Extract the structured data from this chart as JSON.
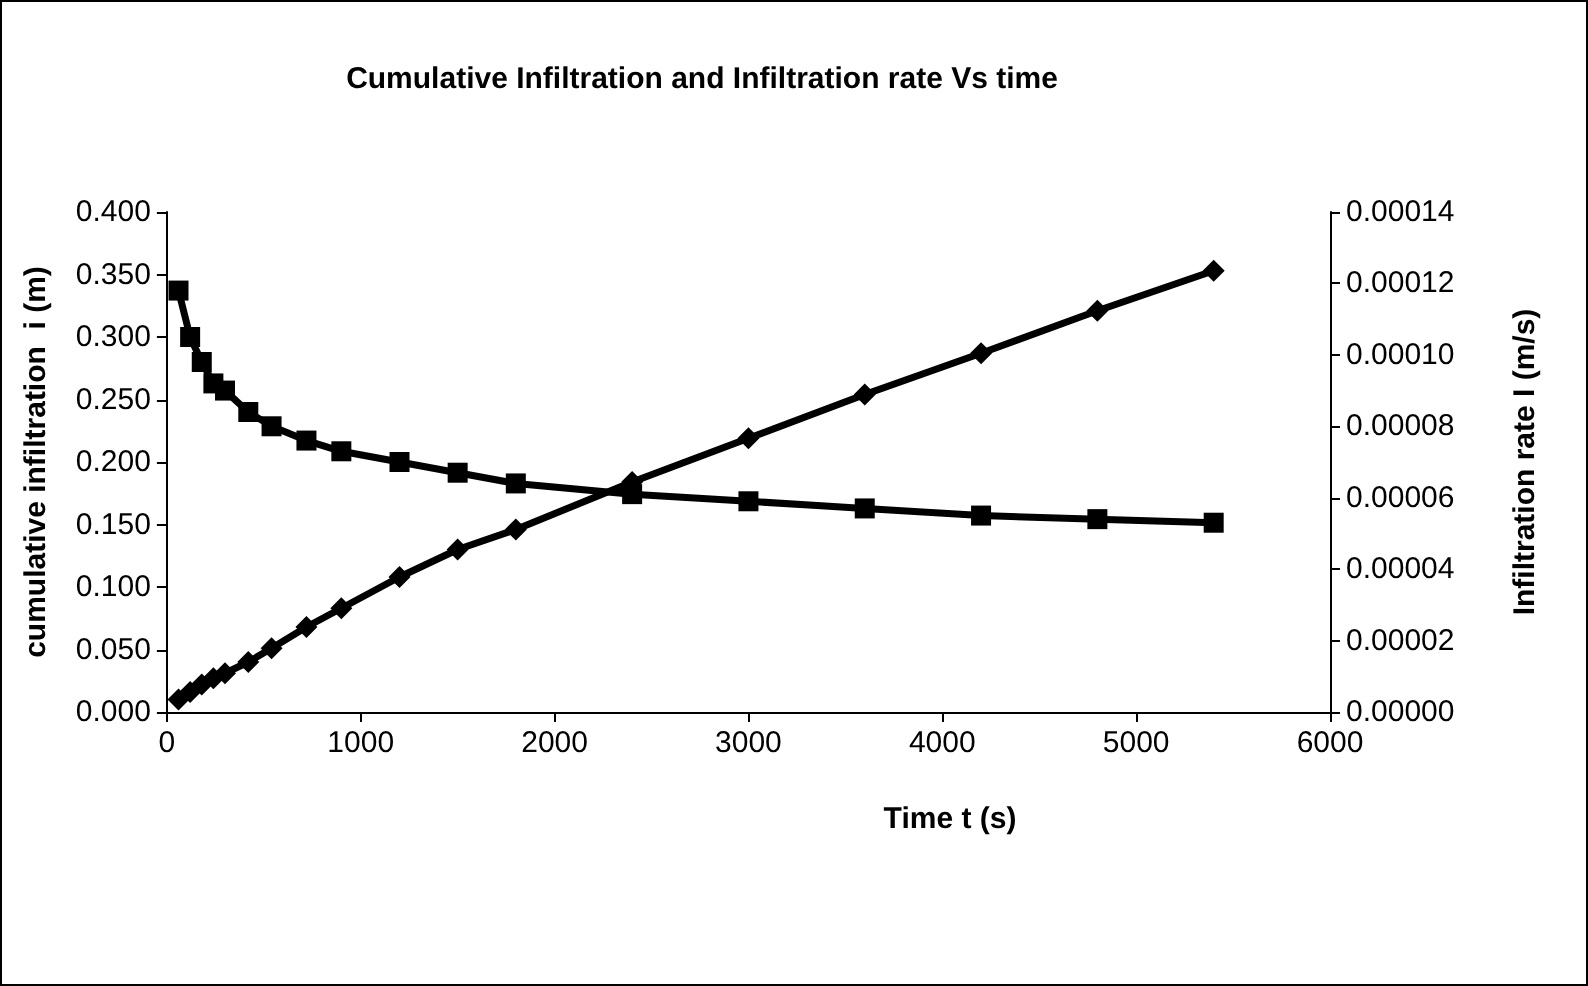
{
  "chart_data": {
    "type": "line",
    "title": "Cumulative Infiltration and Infiltration rate Vs time",
    "xlabel": "Time t (s)",
    "ylabel": "cumulative infiltration  i (m)",
    "y2label": "Infiltration rate I (m/s)",
    "x": [
      60,
      120,
      180,
      240,
      300,
      420,
      540,
      720,
      900,
      1200,
      1500,
      1800,
      2400,
      3000,
      3600,
      4200,
      4800,
      5400
    ],
    "series": [
      {
        "color": "#000000",
        "marker": "diamond",
        "values": [
          0.01,
          0.016,
          0.022,
          0.027,
          0.031,
          0.04,
          0.051,
          0.068,
          0.083,
          0.108,
          0.13,
          0.146,
          0.184,
          0.219,
          0.254,
          0.287,
          0.321,
          0.353
        ]
      },
      {
        "color": "#000000",
        "marker": "square",
        "axis": "y2",
        "values": [
          0.000118,
          0.000105,
          9.8e-05,
          9.2e-05,
          9e-05,
          8.4e-05,
          8e-05,
          7.6e-05,
          7.3e-05,
          7e-05,
          6.7e-05,
          6.4e-05,
          6.1e-05,
          5.9e-05,
          5.7e-05,
          5.5e-05,
          5.4e-05,
          5.3e-05
        ]
      }
    ],
    "xlim": [
      0,
      6000
    ],
    "xticks": [
      0,
      1000,
      2000,
      3000,
      4000,
      5000,
      6000
    ],
    "ylim": [
      0,
      0.4
    ],
    "yticks": [
      {
        "value": 0,
        "label": "0.000"
      },
      {
        "value": 0.05,
        "label": "0.050"
      },
      {
        "value": 0.1,
        "label": "0.100"
      },
      {
        "value": 0.15,
        "label": "0.150"
      },
      {
        "value": 0.2,
        "label": "0.200"
      },
      {
        "value": 0.25,
        "label": "0.250"
      },
      {
        "value": 0.3,
        "label": "0.300"
      },
      {
        "value": 0.35,
        "label": "0.350"
      },
      {
        "value": 0.4,
        "label": "0.400"
      }
    ],
    "y2lim": [
      0,
      0.00014
    ],
    "y2ticks": [
      {
        "value": 0,
        "label": "0.00000"
      },
      {
        "value": 2e-05,
        "label": "0.00002"
      },
      {
        "value": 4e-05,
        "label": "0.00004"
      },
      {
        "value": 6e-05,
        "label": "0.00006"
      },
      {
        "value": 8e-05,
        "label": "0.00008"
      },
      {
        "value": 0.0001,
        "label": "0.00010"
      },
      {
        "value": 0.00012,
        "label": "0.00012"
      },
      {
        "value": 0.00014,
        "label": "0.00014"
      }
    ],
    "grid": false,
    "line_style": "solid"
  }
}
